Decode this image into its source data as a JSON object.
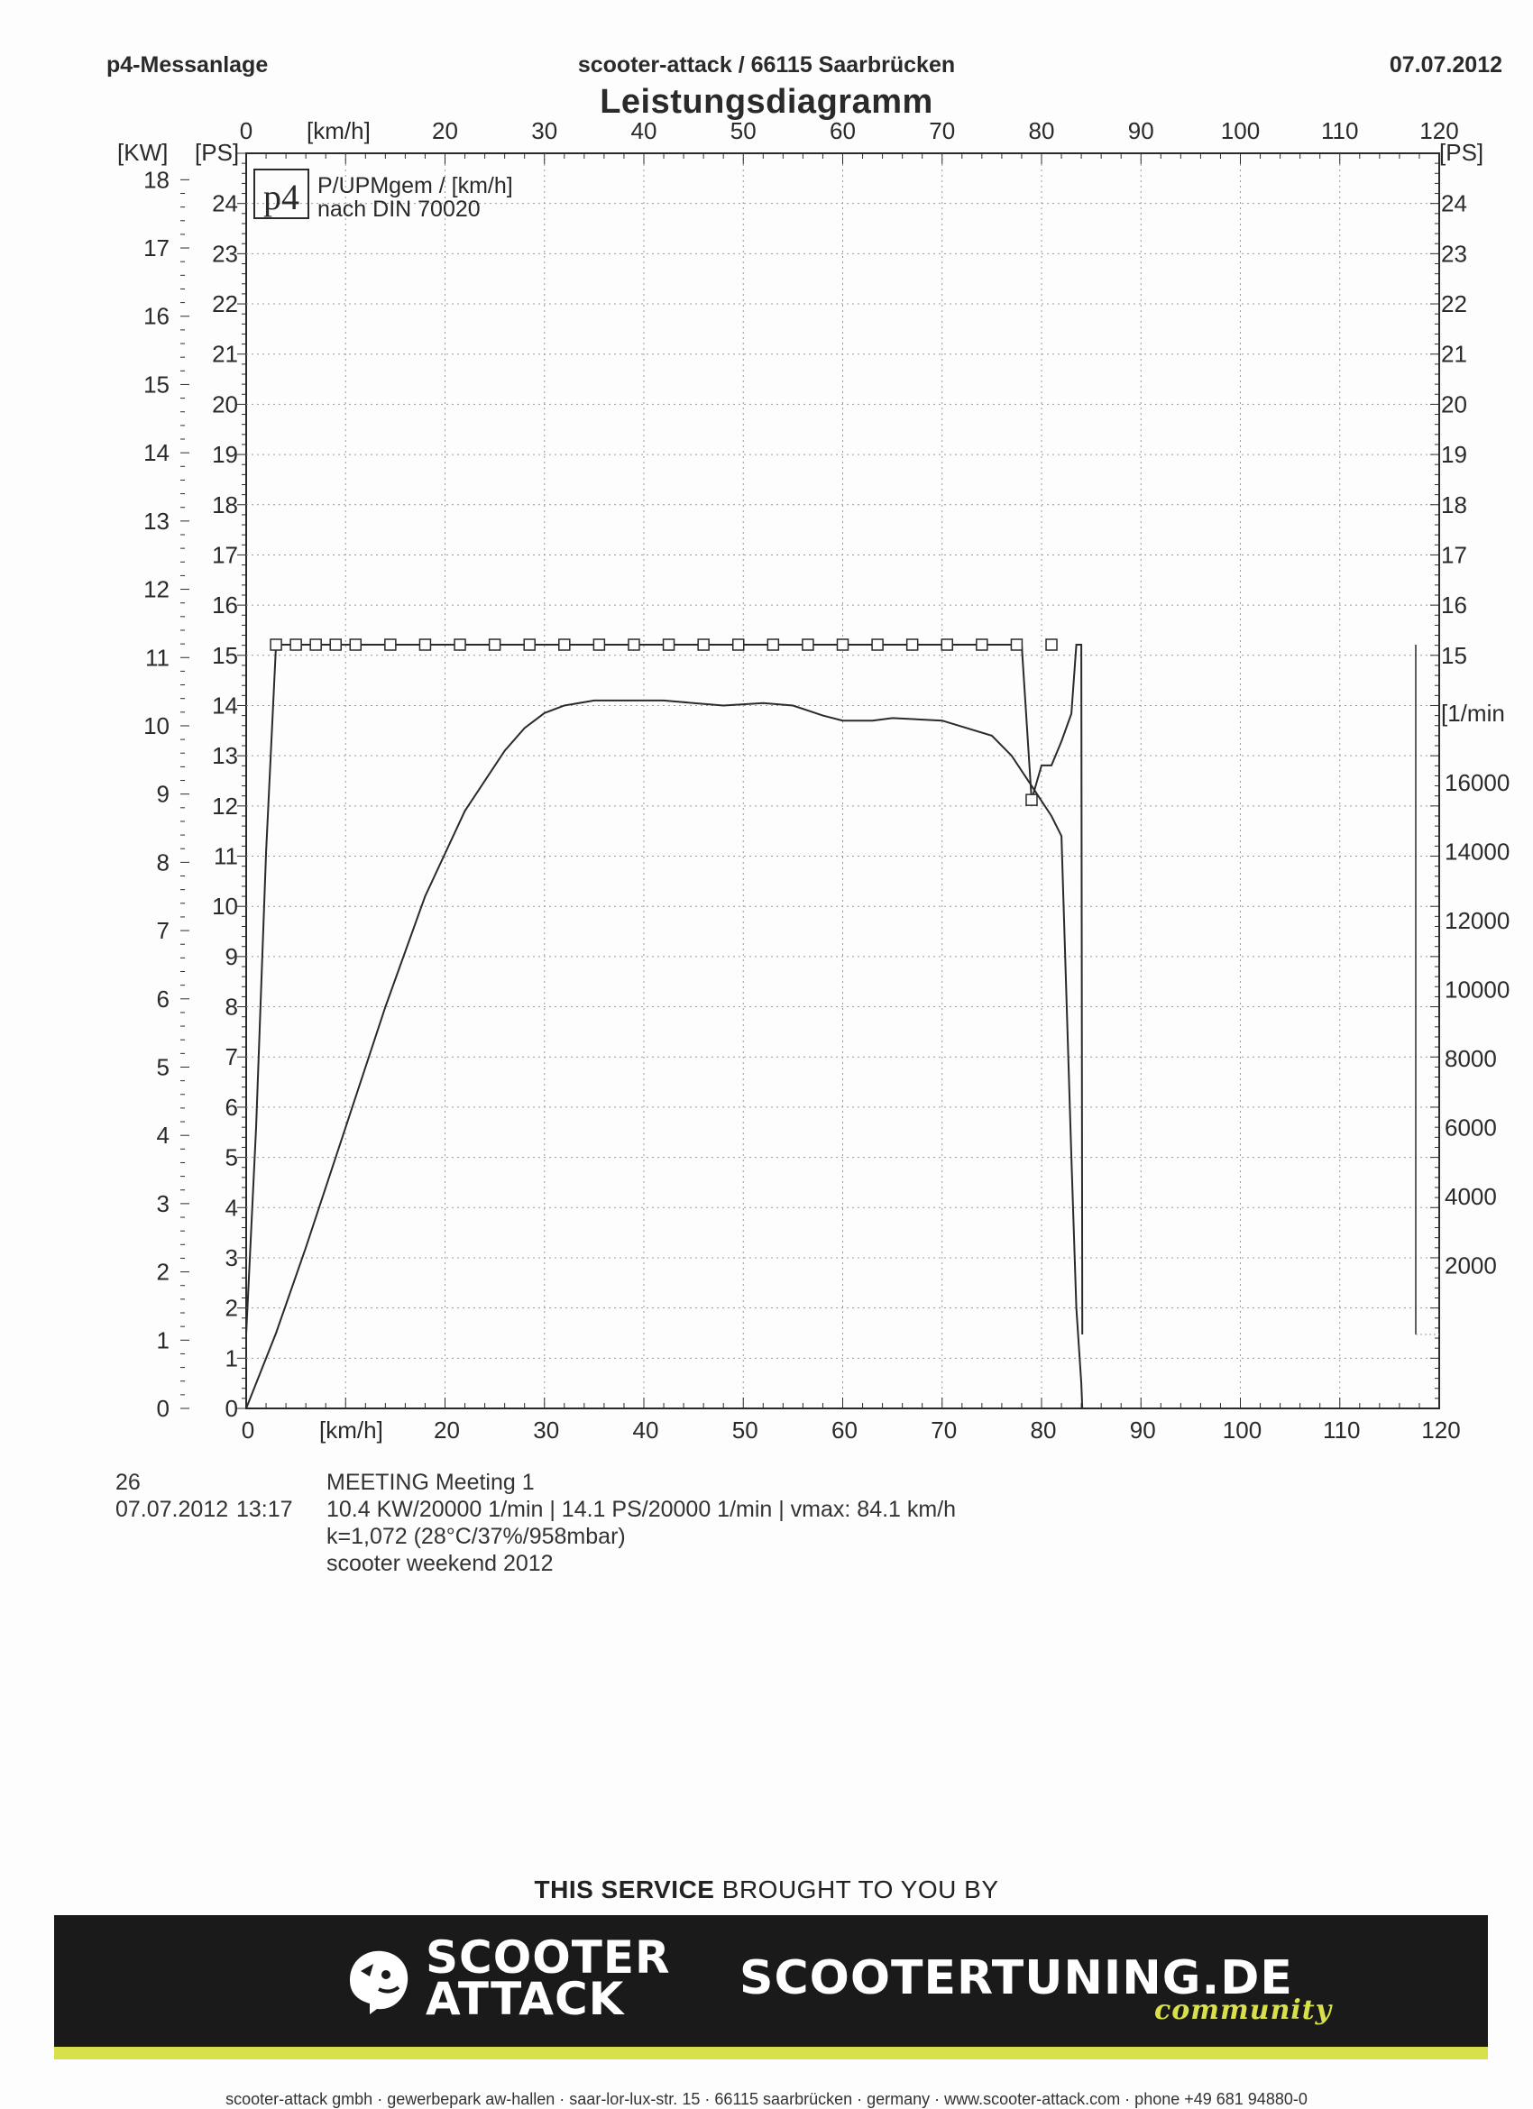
{
  "header": {
    "left": "p4-Messanlage",
    "center": "scooter-attack  / 66115 Saarbrücken",
    "right": "07.07.2012",
    "title": "Leistungsdiagramm"
  },
  "legend": {
    "badge": "p4",
    "line1": "P/UPMgem / [km/h]",
    "line2": "nach DIN 70020"
  },
  "axes": {
    "kw_unit": "[KW]",
    "ps_unit": "[PS]",
    "ps_unit_right": "[PS]",
    "rpm_unit": "[1/min",
    "kmh_unit_top": "[km/h]",
    "kmh_unit_bottom": "[km/h]"
  },
  "chart_data": {
    "type": "line",
    "x_label": "[km/h]",
    "x_range": [
      0,
      120
    ],
    "x_ticks_top": [
      "0",
      "20",
      "30",
      "40",
      "50",
      "60",
      "70",
      "80",
      "90",
      "100",
      "110",
      "120"
    ],
    "x_ticks_bottom": [
      "0",
      "20",
      "30",
      "40",
      "50",
      "60",
      "70",
      "80",
      "90",
      "100",
      "110",
      "120"
    ],
    "kw_ticks": [
      "0",
      "1",
      "2",
      "3",
      "4",
      "5",
      "6",
      "7",
      "8",
      "9",
      "10",
      "11",
      "12",
      "13",
      "14",
      "15",
      "16",
      "17",
      "18"
    ],
    "ps_ticks": [
      "0",
      "1",
      "2",
      "3",
      "4",
      "5",
      "6",
      "7",
      "8",
      "9",
      "10",
      "11",
      "12",
      "13",
      "14",
      "15",
      "16",
      "17",
      "18",
      "19",
      "20",
      "21",
      "22",
      "23",
      "24"
    ],
    "ps_ticks_right": [
      "15",
      "16",
      "17",
      "18",
      "19",
      "20",
      "21",
      "22",
      "23",
      "24"
    ],
    "rpm_ticks": [
      "2000",
      "4000",
      "6000",
      "8000",
      "10000",
      "12000",
      "14000",
      "16000"
    ],
    "ylim_ps": [
      0,
      25
    ],
    "ylim_rpm": [
      0,
      20000
    ],
    "grid": true,
    "series": [
      {
        "role": "power",
        "unit": "PS",
        "x": [
          0,
          3,
          6,
          10,
          14,
          18,
          22,
          26,
          28,
          30,
          32,
          35,
          38,
          42,
          45,
          48,
          52,
          55,
          58,
          60,
          63,
          65,
          70,
          75,
          77,
          79,
          80,
          81,
          82,
          83,
          83.5,
          84,
          84.1
        ],
        "y": [
          0,
          1.5,
          3.2,
          5.6,
          8.0,
          10.2,
          11.9,
          13.1,
          13.55,
          13.85,
          14.0,
          14.1,
          14.1,
          14.1,
          14.05,
          14.0,
          14.05,
          14.0,
          13.8,
          13.7,
          13.7,
          13.75,
          13.7,
          13.4,
          13.0,
          12.4,
          12.1,
          11.8,
          11.4,
          5.0,
          2.0,
          0.5,
          0
        ]
      },
      {
        "role": "rpm",
        "unit": "1/min",
        "x": [
          0,
          1,
          2,
          3,
          5,
          10,
          20,
          30,
          40,
          50,
          60,
          70,
          78,
          79,
          80,
          81,
          82,
          83,
          83.5,
          84,
          84.1
        ],
        "y": [
          0,
          6000,
          14000,
          20000,
          20000,
          20000,
          20000,
          20000,
          20000,
          20000,
          20000,
          20000,
          20000,
          15500,
          16500,
          16500,
          17200,
          18000,
          20000,
          20000,
          0
        ]
      }
    ]
  },
  "info": {
    "run_number": "26",
    "date": "07.07.2012",
    "time": "13:17",
    "meeting": "MEETING Meeting 1",
    "result": "10.4 KW/20000 1/min  |  14.1 PS/20000 1/min  |  vmax: 84.1 km/h",
    "correction": "k=1,072 (28°C/37%/958mbar)",
    "event": "scooter weekend 2012"
  },
  "sponsor": {
    "bold": "THIS SERVICE",
    "rest": " BROUGHT TO YOU BY",
    "logo_left_line1": "SCOOTER",
    "logo_left_line2": "ATTACK",
    "logo_right": "SCOOTERTUNING.DE",
    "logo_right_sub": "community",
    "icon": "lion-head-icon"
  },
  "footer": {
    "text": "scooter-attack gmbh · gewerbepark aw-hallen · saar-lor-lux-str. 15 · 66115 saarbrücken · germany · www.scooter-attack.com · phone +49 681 94880-0"
  },
  "colors": {
    "ink": "#2a2a2a",
    "grid": "#9a9a9a",
    "banner_bg": "#1a1a1a",
    "accent": "#d8e04a"
  }
}
